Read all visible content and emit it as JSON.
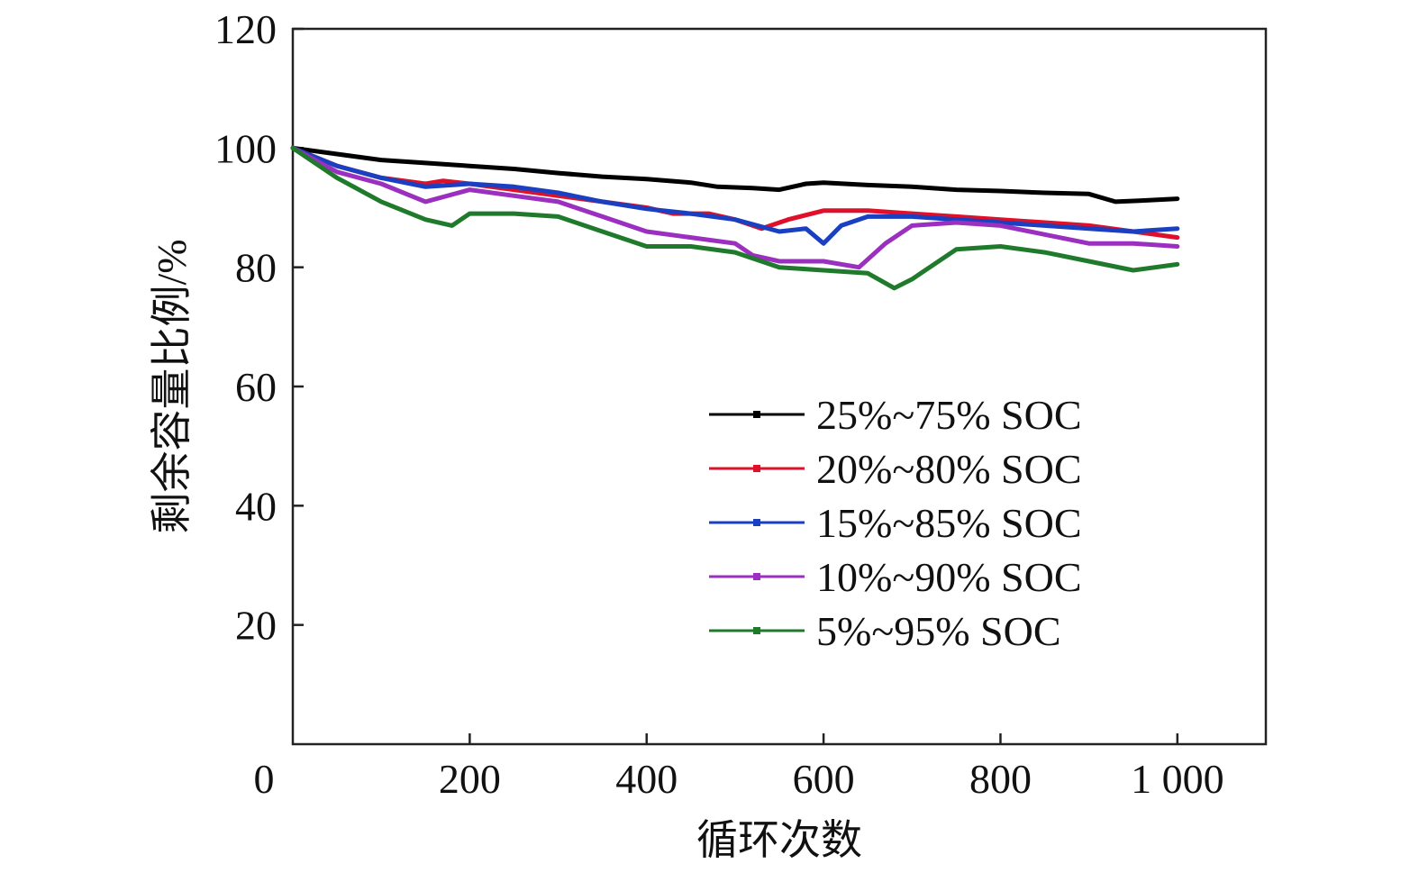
{
  "chart_data": {
    "type": "line",
    "xlabel": "循环次数",
    "ylabel": "剩余容量比例/%",
    "xlim": [
      0,
      1100
    ],
    "ylim": [
      0,
      120
    ],
    "x_ticks": [
      0,
      200,
      400,
      600,
      800,
      1000
    ],
    "x_tick_labels": [
      "0",
      "200",
      "400",
      "600",
      "800",
      "1 000"
    ],
    "y_ticks": [
      20,
      40,
      60,
      80,
      100,
      120
    ],
    "y_tick_labels": [
      "20",
      "40",
      "60",
      "80",
      "100",
      "120"
    ],
    "grid": false,
    "legend_position": "lower-right",
    "series": [
      {
        "name": "25%~75% SOC",
        "color": "#000000",
        "points": [
          [
            0,
            100
          ],
          [
            50,
            99
          ],
          [
            100,
            98
          ],
          [
            150,
            97.5
          ],
          [
            200,
            97
          ],
          [
            250,
            96.5
          ],
          [
            300,
            95.8
          ],
          [
            350,
            95.2
          ],
          [
            400,
            94.8
          ],
          [
            450,
            94.2
          ],
          [
            480,
            93.5
          ],
          [
            520,
            93.3
          ],
          [
            550,
            93
          ],
          [
            580,
            94
          ],
          [
            600,
            94.2
          ],
          [
            650,
            93.8
          ],
          [
            700,
            93.5
          ],
          [
            750,
            93
          ],
          [
            800,
            92.8
          ],
          [
            850,
            92.5
          ],
          [
            900,
            92.3
          ],
          [
            930,
            91
          ],
          [
            960,
            91.2
          ],
          [
            1000,
            91.5
          ]
        ]
      },
      {
        "name": "20%~80% SOC",
        "color": "#e0102a",
        "points": [
          [
            0,
            100
          ],
          [
            50,
            97
          ],
          [
            100,
            95
          ],
          [
            150,
            94
          ],
          [
            170,
            94.5
          ],
          [
            200,
            94
          ],
          [
            250,
            93
          ],
          [
            300,
            92
          ],
          [
            350,
            91
          ],
          [
            400,
            90
          ],
          [
            430,
            89
          ],
          [
            470,
            89
          ],
          [
            500,
            88
          ],
          [
            530,
            86.5
          ],
          [
            560,
            88
          ],
          [
            600,
            89.5
          ],
          [
            650,
            89.5
          ],
          [
            700,
            89
          ],
          [
            750,
            88.5
          ],
          [
            800,
            88
          ],
          [
            850,
            87.5
          ],
          [
            900,
            87
          ],
          [
            950,
            86
          ],
          [
            1000,
            85
          ]
        ]
      },
      {
        "name": "15%~85% SOC",
        "color": "#1a3fc0",
        "points": [
          [
            0,
            100
          ],
          [
            50,
            97
          ],
          [
            100,
            95
          ],
          [
            150,
            93.5
          ],
          [
            200,
            94
          ],
          [
            250,
            93.5
          ],
          [
            300,
            92.5
          ],
          [
            350,
            91
          ],
          [
            400,
            89.8
          ],
          [
            450,
            89
          ],
          [
            500,
            88
          ],
          [
            550,
            86
          ],
          [
            580,
            86.5
          ],
          [
            600,
            84
          ],
          [
            620,
            87
          ],
          [
            650,
            88.5
          ],
          [
            700,
            88.5
          ],
          [
            750,
            88
          ],
          [
            800,
            87.5
          ],
          [
            850,
            87
          ],
          [
            900,
            86.5
          ],
          [
            950,
            86
          ],
          [
            1000,
            86.5
          ]
        ]
      },
      {
        "name": "10%~90% SOC",
        "color": "#9b2fbf",
        "points": [
          [
            0,
            100
          ],
          [
            50,
            96
          ],
          [
            100,
            94
          ],
          [
            150,
            91
          ],
          [
            200,
            93
          ],
          [
            250,
            92
          ],
          [
            300,
            91
          ],
          [
            350,
            88.5
          ],
          [
            400,
            86
          ],
          [
            450,
            85
          ],
          [
            500,
            84
          ],
          [
            520,
            82
          ],
          [
            550,
            81
          ],
          [
            600,
            81
          ],
          [
            640,
            80
          ],
          [
            670,
            84
          ],
          [
            700,
            87
          ],
          [
            750,
            87.5
          ],
          [
            800,
            87
          ],
          [
            850,
            85.5
          ],
          [
            900,
            84
          ],
          [
            950,
            84
          ],
          [
            1000,
            83.5
          ]
        ]
      },
      {
        "name": "5%~95% SOC",
        "color": "#1f7a2c",
        "points": [
          [
            0,
            100
          ],
          [
            50,
            95
          ],
          [
            100,
            91
          ],
          [
            150,
            88
          ],
          [
            180,
            87
          ],
          [
            200,
            89
          ],
          [
            250,
            89
          ],
          [
            300,
            88.5
          ],
          [
            350,
            86
          ],
          [
            400,
            83.5
          ],
          [
            450,
            83.5
          ],
          [
            500,
            82.5
          ],
          [
            550,
            80
          ],
          [
            600,
            79.5
          ],
          [
            650,
            79
          ],
          [
            680,
            76.5
          ],
          [
            700,
            78
          ],
          [
            750,
            83
          ],
          [
            800,
            83.5
          ],
          [
            850,
            82.5
          ],
          [
            900,
            81
          ],
          [
            950,
            79.5
          ],
          [
            1000,
            80.5
          ]
        ]
      }
    ]
  }
}
